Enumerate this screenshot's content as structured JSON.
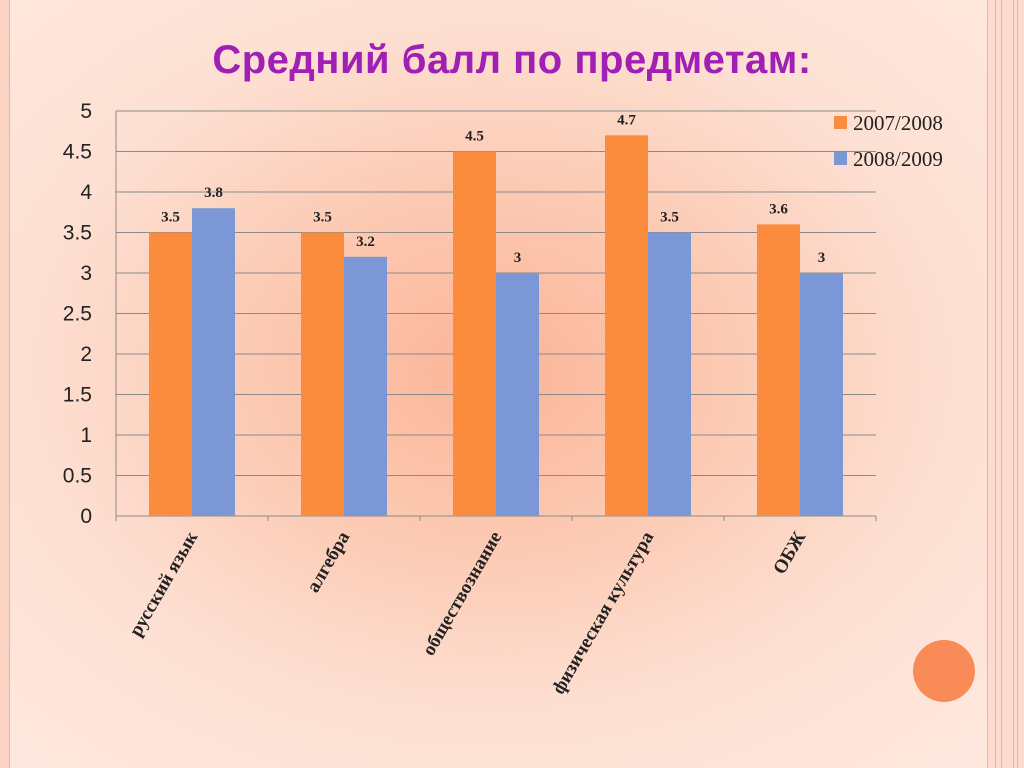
{
  "chart_data": {
    "type": "bar",
    "title": "Средний балл по предметам:",
    "categories": [
      "русский язык",
      "алгебра",
      "обществознание",
      "физическая культура",
      "ОБЖ"
    ],
    "series": [
      {
        "name": "2007/2008",
        "color": "#fb8c3d",
        "values": [
          3.5,
          3.5,
          4.5,
          4.7,
          3.6
        ]
      },
      {
        "name": "2008/2009",
        "color": "#7b97d6",
        "values": [
          3.8,
          3.2,
          3,
          3.5,
          3
        ]
      }
    ],
    "yticks": [
      "0",
      "0.5",
      "1",
      "1.5",
      "2",
      "2.5",
      "3",
      "3.5",
      "4",
      "4.5",
      "5"
    ],
    "data_labels": [
      [
        "3.5",
        "3.5",
        "4.5",
        "4.7",
        "3.6"
      ],
      [
        "3.8",
        "3.2",
        "3",
        "3.5",
        "3"
      ]
    ],
    "ylim": [
      0,
      5
    ],
    "grid": true,
    "legend": "top-right"
  },
  "colors": {
    "title": "#a01fb4",
    "gridline": "#888888",
    "circle_accent": "#f98b58"
  }
}
